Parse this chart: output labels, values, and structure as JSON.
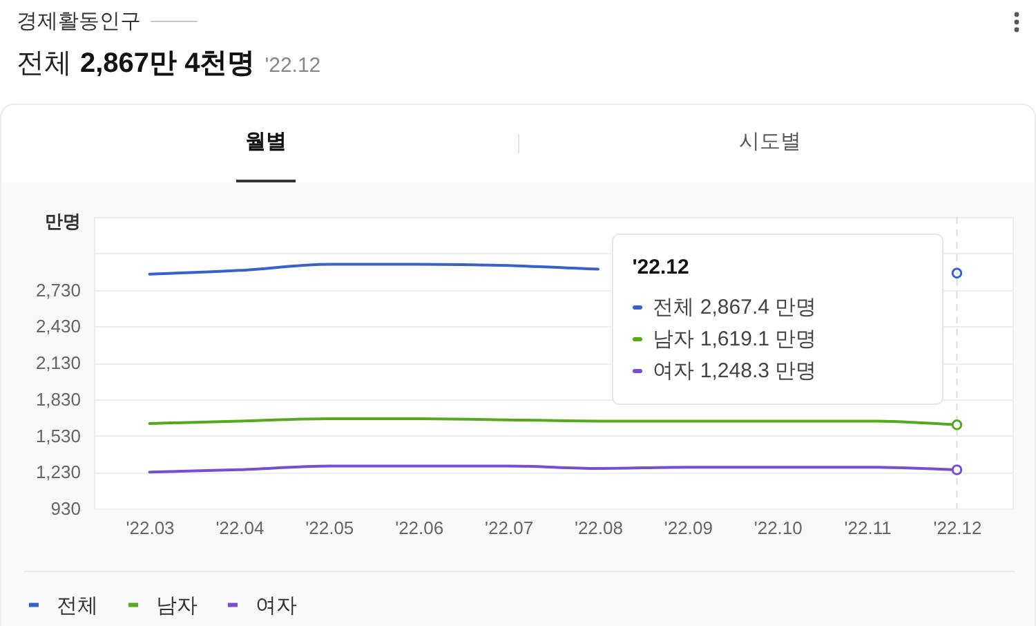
{
  "chart_data": {
    "type": "line",
    "title": "경제활동인구",
    "subtitle": "전체 2,867만 4천명 '22.12",
    "ylabel": "만명",
    "annotations": [
      "월별",
      "시도별",
      "전체 2,867.4 만명",
      "남자 1,619.1 만명",
      "여자 1,248.3 만명"
    ],
    "categories": [
      "'22.03",
      "'22.04",
      "'22.05",
      "'22.06",
      "'22.07",
      "'22.08",
      "'22.09",
      "'22.10",
      "'22.11",
      "'22.12"
    ],
    "series": [
      {
        "name": "전체",
        "color": "#3563c9",
        "values": [
          2860,
          2890,
          2940,
          2940,
          2930,
          2900,
          null,
          null,
          null,
          2867.4
        ]
      },
      {
        "name": "남자",
        "color": "#55a91e",
        "values": [
          1630,
          1650,
          1670,
          1670,
          1660,
          1650,
          1650,
          1650,
          1650,
          1619.1
        ]
      },
      {
        "name": "여자",
        "color": "#7a4bd3",
        "values": [
          1230,
          1250,
          1280,
          1280,
          1280,
          1260,
          1270,
          1270,
          1270,
          1248.3
        ]
      }
    ],
    "ylim": [
      930,
      3330
    ],
    "yticks": [
      930,
      {
        "value": 1230,
        "label": "1,230"
      },
      {
        "value": 1530,
        "label": "1,530"
      },
      {
        "value": 1830,
        "label": "1,830"
      },
      {
        "value": 2130,
        "label": "2,130"
      },
      {
        "value": 2430,
        "label": "2,430"
      },
      {
        "value": 2730,
        "label": "2,730"
      },
      {
        "value": 3030,
        "label": null
      }
    ],
    "grid": "y",
    "legend": "bottom left",
    "ref_lines": [
      {
        "axis": "x",
        "value": "'22.12",
        "line_style": "dashed",
        "color": "#dcdcdc"
      }
    ]
  }
}
